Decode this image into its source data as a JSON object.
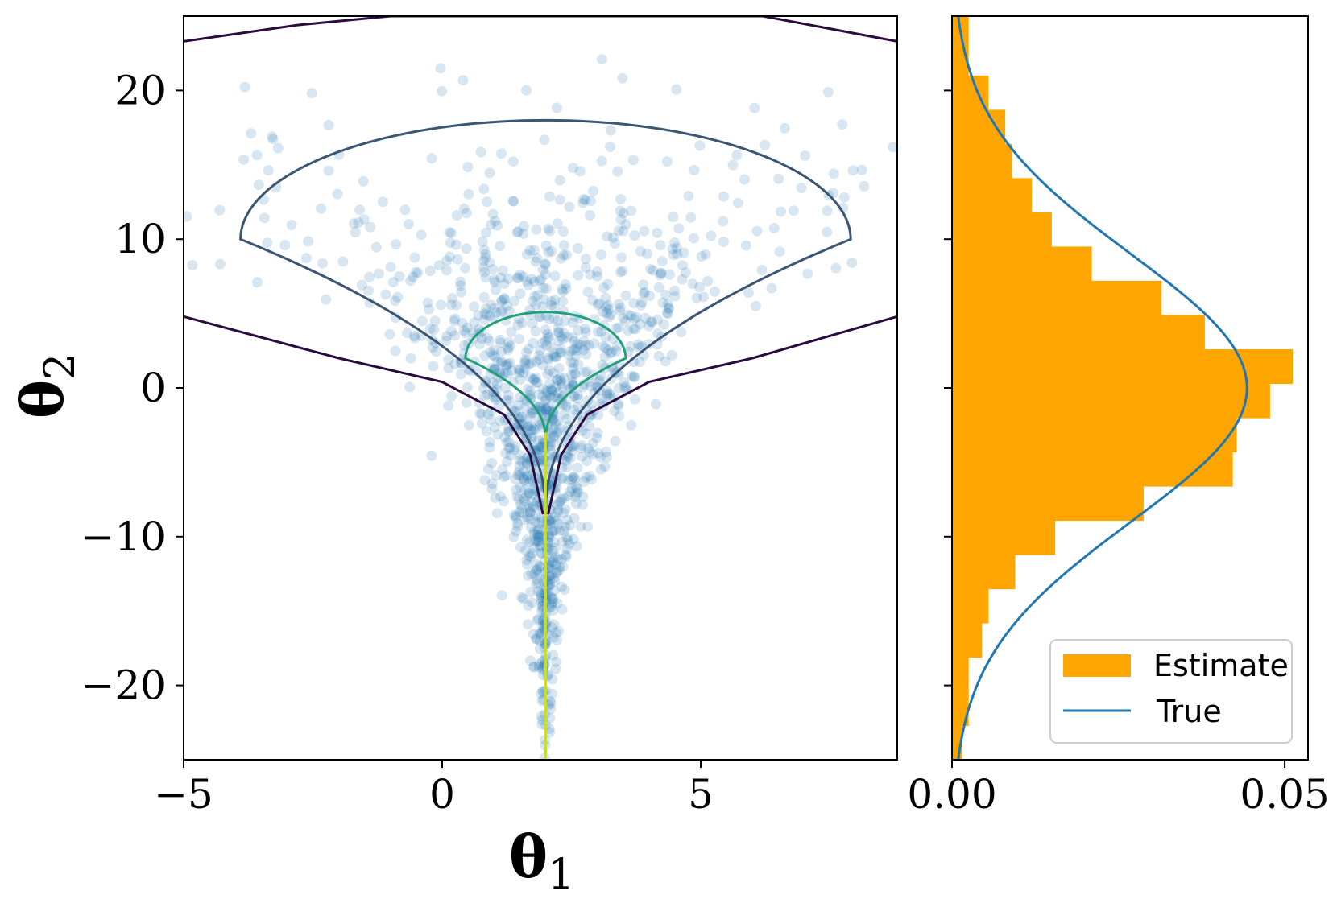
{
  "colors": {
    "scatter": "#1f77b4",
    "histogram": "#ffa500",
    "true_curve": "#1f77b4",
    "contour_outer": "#2d0a3e",
    "contour_mid": "#3b5575",
    "contour_inner": "#22a07a",
    "contour_core": "#c8e020"
  },
  "chart_data": [
    {
      "type": "scatter",
      "title": "",
      "xlabel": "θ",
      "xlabel_sub": "1",
      "ylabel": "θ",
      "ylabel_sub": "2",
      "xlim": [
        -5,
        8.8
      ],
      "ylim": [
        -25,
        25
      ],
      "xticks": [
        -5,
        0,
        5
      ],
      "xtick_labels": [
        "−5",
        "0",
        "5"
      ],
      "yticks": [
        20,
        10,
        0,
        -10,
        -20
      ],
      "ytick_labels": [
        "20",
        "10",
        "0",
        "−10",
        "−20"
      ],
      "grid": false,
      "scatter_alpha": 0.18,
      "scatter_description": "samples from a funnel-shaped density: wide spread for theta2 > 0, collapsing to theta1 ≈ 2 as theta2 decreases",
      "contours": [
        {
          "level": "outer",
          "points": [
            [
              -5,
              23.3
            ],
            [
              -2.8,
              24.4
            ],
            [
              -1.0,
              25
            ],
            [
              6.2,
              25
            ],
            [
              8.8,
              23.3
            ]
          ],
          "lower_left": [
            [
              -5,
              4.8
            ],
            [
              -2.0,
              2.0
            ],
            [
              0.0,
              0.4
            ],
            [
              1.2,
              -1.8
            ],
            [
              1.7,
              -4.5
            ],
            [
              1.95,
              -8.5
            ]
          ],
          "lower_right": [
            [
              8.8,
              4.8
            ],
            [
              6.0,
              2.0
            ],
            [
              4.0,
              0.4
            ],
            [
              2.8,
              -1.8
            ],
            [
              2.3,
              -4.5
            ],
            [
              2.05,
              -8.5
            ]
          ]
        },
        {
          "level": "mid",
          "center_x": 2,
          "top": 18,
          "half_width": 5.9,
          "width_y": 10,
          "bottom_y": -8.5
        },
        {
          "level": "inner",
          "center_x": 2,
          "top": 5.1,
          "half_width": 1.55,
          "width_y": 2.0,
          "bottom_y": -3.5
        },
        {
          "level": "core",
          "x": 2,
          "y_from": -25,
          "y_to": -3
        }
      ]
    },
    {
      "type": "bar",
      "orientation": "horizontal",
      "title": "",
      "xlim": [
        0,
        0.0535
      ],
      "ylim": [
        -25,
        25
      ],
      "xticks": [
        0.0,
        0.05
      ],
      "xtick_labels": [
        "0.00",
        "0.05"
      ],
      "grid": false,
      "legend_position": "bottom-right",
      "series": [
        {
          "name": "Estimate",
          "kind": "histogram",
          "bin_edges": [
            -25,
            -22.7,
            -20.4,
            -18.1,
            -15.8,
            -13.5,
            -11.2,
            -8.9,
            -6.6,
            -4.3,
            -2.0,
            0.3,
            2.6,
            4.9,
            7.2,
            9.5,
            11.8,
            14.1,
            16.4,
            18.7,
            21.0,
            23.3,
            25
          ],
          "values": [
            0.0015,
            0.0025,
            0.0025,
            0.0045,
            0.0055,
            0.0095,
            0.0155,
            0.0288,
            0.0422,
            0.0428,
            0.0478,
            0.0512,
            0.038,
            0.0315,
            0.021,
            0.015,
            0.012,
            0.009,
            0.008,
            0.0055,
            0.0025,
            0.0025
          ]
        },
        {
          "name": "True",
          "kind": "line",
          "distribution": "normal",
          "mean": 0,
          "std": 9
        }
      ]
    }
  ]
}
